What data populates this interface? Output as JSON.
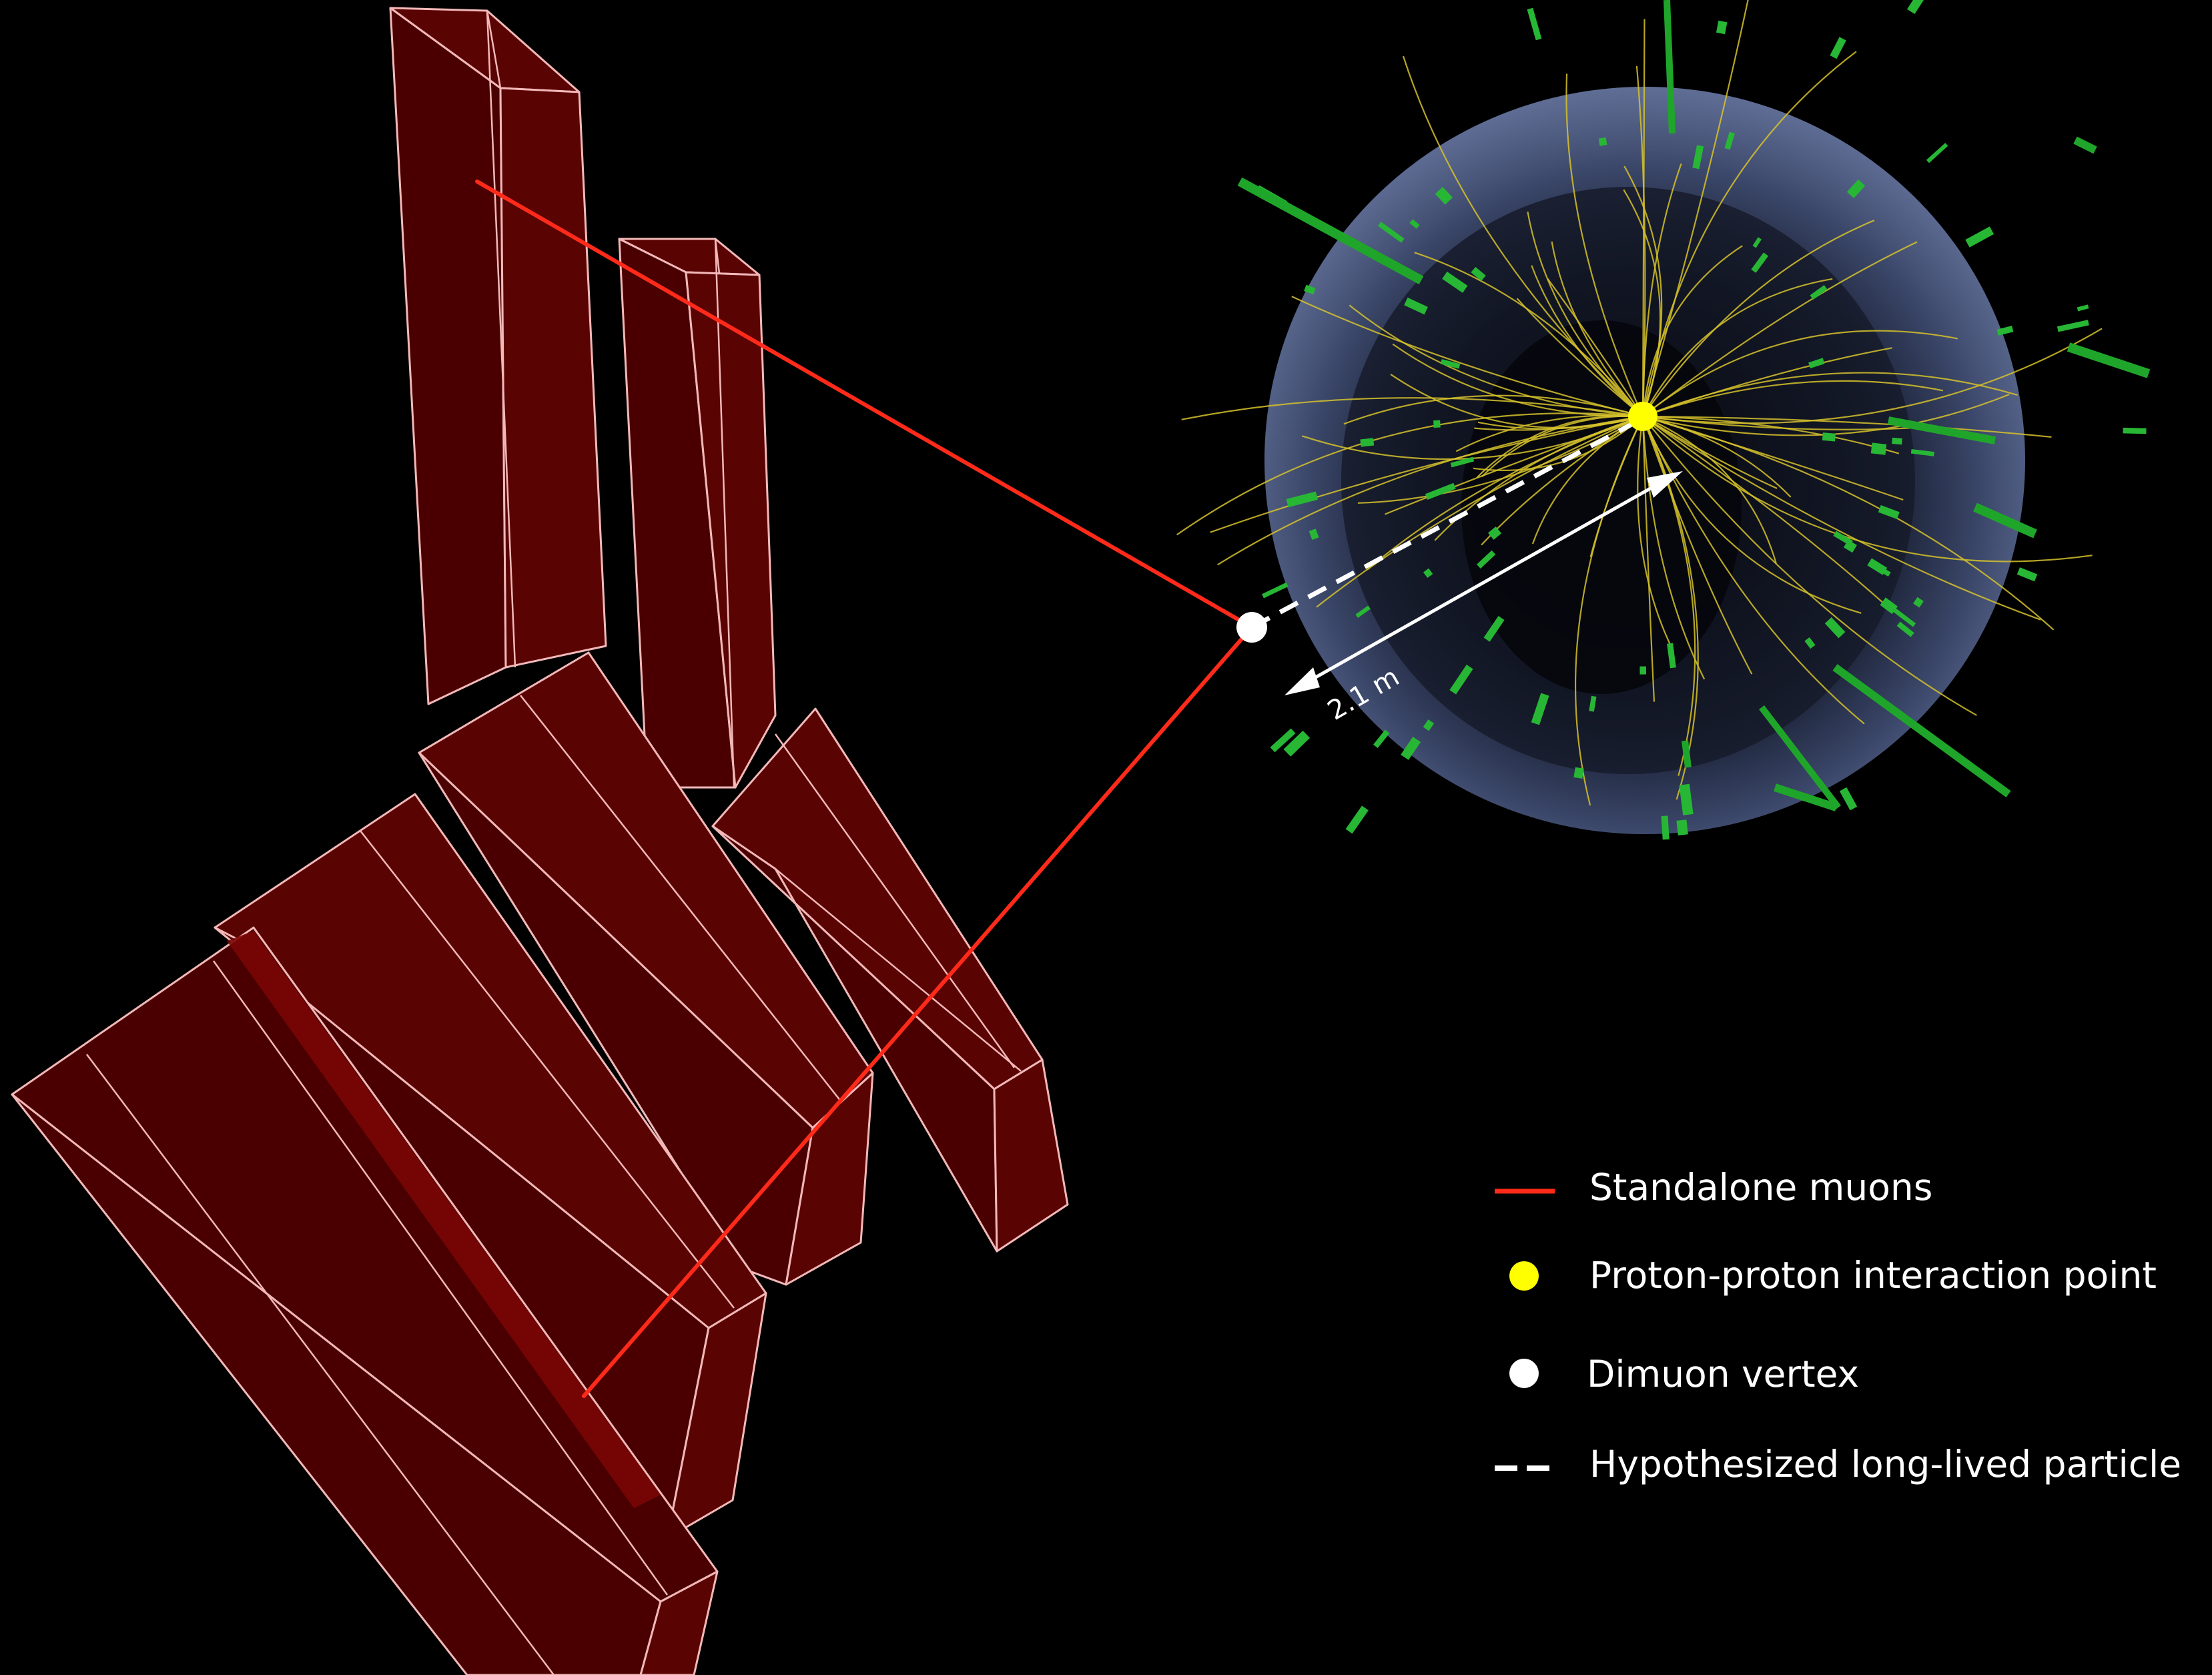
{
  "distance_label": "2.1 m",
  "legend": {
    "items": [
      {
        "label": "Standalone muons",
        "symbol": "red-line",
        "color": "#ff2a1a"
      },
      {
        "label": "Proton-proton interaction point",
        "symbol": "yellow-dot",
        "color": "#ffff00"
      },
      {
        "label": "Dimuon vertex",
        "symbol": "white-dot",
        "color": "#ffffff"
      },
      {
        "label": "Hypothesized long-lived particle",
        "symbol": "white-dashed-line",
        "color": "#ffffff"
      }
    ]
  },
  "colors": {
    "background": "#000000",
    "muon_chamber": "#4a0000",
    "chamber_outline": "#f2b8b8",
    "tracks": "#d6c22c",
    "calorimeter_hits": "#27b735",
    "detector_barrel": "#5a6a9a"
  }
}
